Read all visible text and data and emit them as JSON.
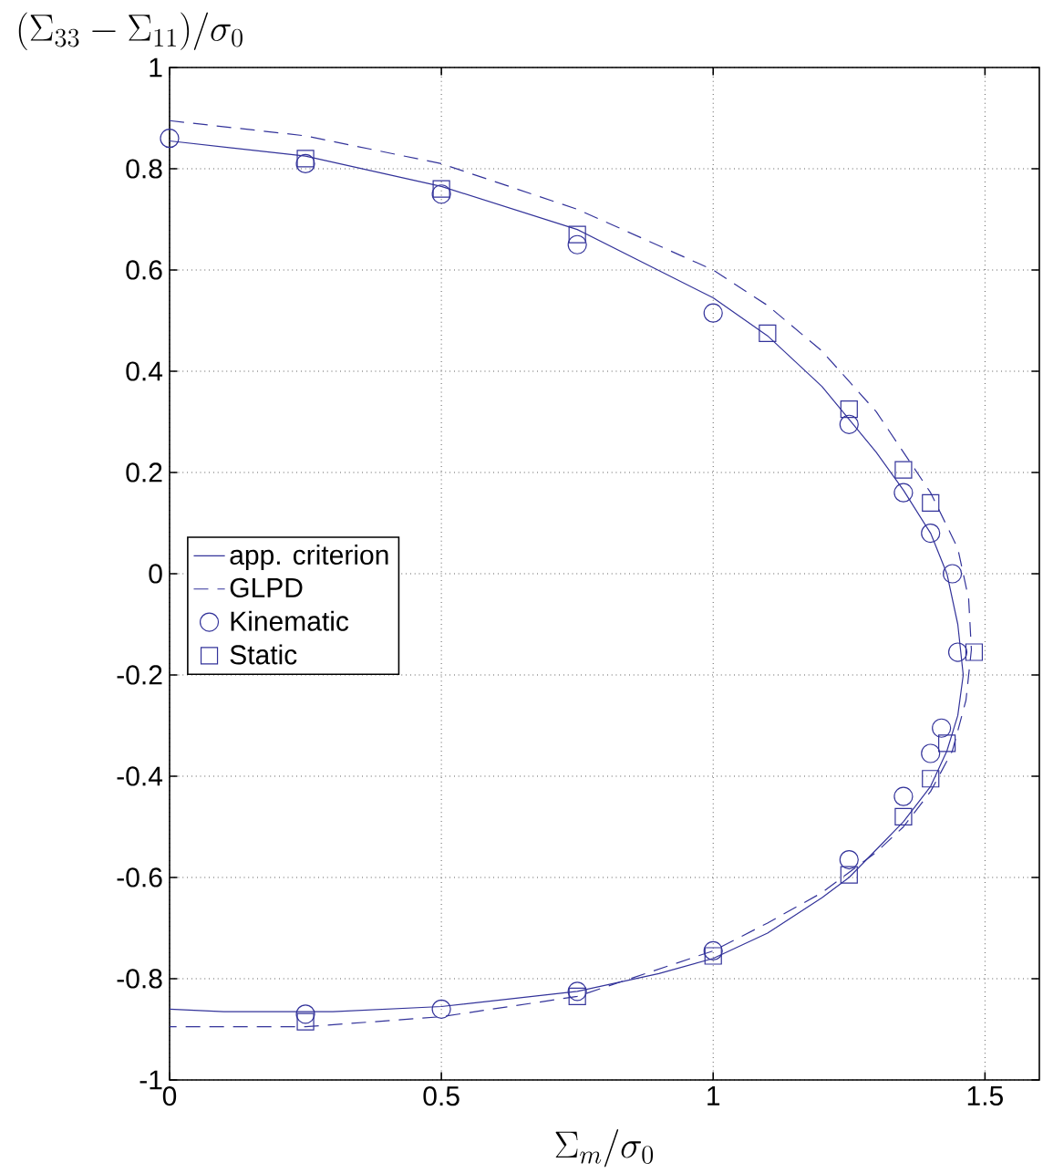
{
  "chart_data": {
    "type": "line",
    "xlabel": "\\Sigma_m/\\sigma_0",
    "ylabel": "(\\Sigma_{33}-\\Sigma_{11})/\\sigma_0",
    "xlim": [
      0,
      1.6
    ],
    "ylim": [
      -1,
      1
    ],
    "xticks": [
      0,
      0.5,
      1,
      1.5
    ],
    "yticks": [
      -1,
      -0.8,
      -0.6,
      -0.4,
      -0.2,
      0,
      0.2,
      0.4,
      0.6,
      0.8,
      1
    ],
    "grid": true,
    "legend": "left",
    "series": [
      {
        "name": "app. criterion",
        "line_style": "solid",
        "color": "#33339a",
        "x": [
          0,
          0.25,
          0.5,
          0.75,
          1,
          1.1,
          1.2,
          1.3,
          1.35,
          1.4,
          1.43,
          1.45,
          1.46,
          1.45,
          1.43,
          1.4,
          1.35,
          1.3,
          1.25,
          1.2,
          1.1,
          1,
          0.9,
          0.75,
          0.5,
          0.3,
          0.1,
          0
        ],
        "values": [
          0.855,
          0.825,
          0.765,
          0.68,
          0.545,
          0.47,
          0.37,
          0.24,
          0.165,
          0.08,
          0,
          -0.1,
          -0.2,
          -0.28,
          -0.35,
          -0.42,
          -0.49,
          -0.545,
          -0.6,
          -0.64,
          -0.71,
          -0.76,
          -0.79,
          -0.825,
          -0.855,
          -0.865,
          -0.865,
          -0.86
        ]
      },
      {
        "name": "GLPD",
        "line_style": "dashed",
        "color": "#33339a",
        "x": [
          0,
          0.25,
          0.5,
          0.75,
          1,
          1.1,
          1.2,
          1.3,
          1.4,
          1.45,
          1.47,
          1.475,
          1.465,
          1.44,
          1.4,
          1.35,
          1.3,
          1.2,
          1.1,
          1,
          0.75,
          0.5,
          0.25,
          0
        ],
        "values": [
          0.895,
          0.865,
          0.81,
          0.72,
          0.6,
          0.53,
          0.44,
          0.32,
          0.16,
          0.05,
          -0.05,
          -0.15,
          -0.25,
          -0.35,
          -0.43,
          -0.5,
          -0.55,
          -0.63,
          -0.69,
          -0.745,
          -0.835,
          -0.875,
          -0.895,
          -0.895
        ]
      },
      {
        "name": "Kinematic",
        "type": "scatter",
        "marker": "circle",
        "color": "#33339a",
        "x": [
          0,
          0.25,
          0.5,
          0.75,
          1,
          1.25,
          1.35,
          1.4,
          1.44,
          1.45,
          1.42,
          1.4,
          1.35,
          1.25,
          1,
          0.75,
          0.5,
          0.25
        ],
        "values": [
          0.86,
          0.81,
          0.75,
          0.65,
          0.515,
          0.295,
          0.16,
          0.08,
          0,
          -0.155,
          -0.305,
          -0.355,
          -0.44,
          -0.565,
          -0.745,
          -0.825,
          -0.86,
          -0.87
        ]
      },
      {
        "name": "Static",
        "type": "scatter",
        "marker": "square",
        "color": "#33339a",
        "x": [
          0.25,
          0.5,
          0.75,
          1.1,
          1.25,
          1.35,
          1.4,
          1.48,
          1.43,
          1.4,
          1.35,
          1.25,
          1,
          0.75,
          0.25
        ],
        "values": [
          0.82,
          0.76,
          0.67,
          0.475,
          0.325,
          0.205,
          0.14,
          -0.155,
          -0.335,
          -0.405,
          -0.48,
          -0.595,
          -0.755,
          -0.835,
          -0.885
        ]
      }
    ]
  }
}
